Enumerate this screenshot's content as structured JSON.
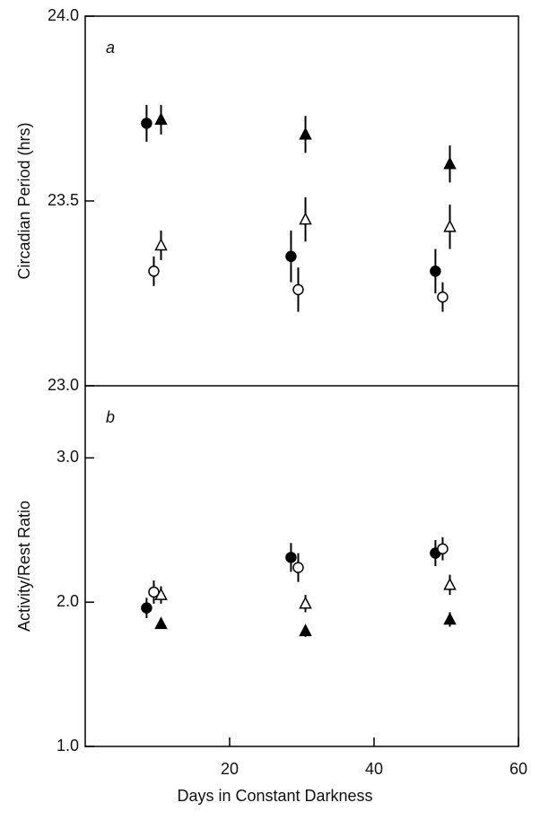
{
  "chart_data": [
    {
      "type": "scatter",
      "panel_label": "a",
      "ylabel": "Circadian Period (hrs)",
      "xlim": [
        0,
        60
      ],
      "ylim": [
        23,
        24
      ],
      "yticks": [
        {
          "value": 23,
          "label": "23.0"
        },
        23.5,
        {
          "value": 24,
          "label": "24.0"
        }
      ],
      "series": [
        {
          "marker": "filled-circle",
          "color": "#000000",
          "x": [
            8.5,
            28.5,
            48.5
          ],
          "values": [
            23.71,
            23.35,
            23.31
          ],
          "errors": [
            0.05,
            0.07,
            0.06
          ]
        },
        {
          "marker": "filled-triangle",
          "color": "#000000",
          "x": [
            10.5,
            30.5,
            50.5
          ],
          "values": [
            23.72,
            23.68,
            23.6
          ],
          "errors": [
            0.04,
            0.05,
            0.05
          ]
        },
        {
          "marker": "open-triangle",
          "color": "#000000",
          "x": [
            10.5,
            30.5,
            50.5
          ],
          "values": [
            23.38,
            23.45,
            23.43
          ],
          "errors": [
            0.04,
            0.06,
            0.06
          ]
        },
        {
          "marker": "open-circle",
          "color": "#000000",
          "x": [
            9.5,
            29.5,
            49.5
          ],
          "values": [
            23.31,
            23.26,
            23.24
          ],
          "errors": [
            0.04,
            0.06,
            0.04
          ]
        }
      ]
    },
    {
      "type": "scatter",
      "panel_label": "b",
      "ylabel": "Activity/Rest Ratio",
      "xlabel": "Days in Constant Darkness",
      "xlim": [
        0,
        60
      ],
      "xticks": [
        20,
        40,
        60
      ],
      "ylim": [
        1,
        3.5
      ],
      "yticks": [
        {
          "value": 1,
          "label": "1.0"
        },
        {
          "value": 2,
          "label": "2.0"
        },
        {
          "value": 3,
          "label": "3.0"
        }
      ],
      "series": [
        {
          "marker": "filled-circle",
          "color": "#000000",
          "x": [
            8.5,
            28.5,
            48.5
          ],
          "values": [
            1.96,
            2.31,
            2.34
          ],
          "errors": [
            0.07,
            0.1,
            0.09
          ]
        },
        {
          "marker": "open-circle",
          "color": "#000000",
          "x": [
            9.5,
            29.5,
            49.5
          ],
          "values": [
            2.07,
            2.24,
            2.37
          ],
          "errors": [
            0.08,
            0.1,
            0.08
          ]
        },
        {
          "marker": "open-triangle",
          "color": "#000000",
          "x": [
            10.5,
            30.5,
            50.5
          ],
          "values": [
            2.05,
            1.99,
            2.12
          ],
          "errors": [
            0.06,
            0.06,
            0.07
          ]
        },
        {
          "marker": "filled-triangle",
          "color": "#000000",
          "x": [
            10.5,
            30.5,
            50.5
          ],
          "values": [
            1.85,
            1.8,
            1.88
          ],
          "errors": [
            0.03,
            0.04,
            0.05
          ]
        }
      ]
    }
  ]
}
